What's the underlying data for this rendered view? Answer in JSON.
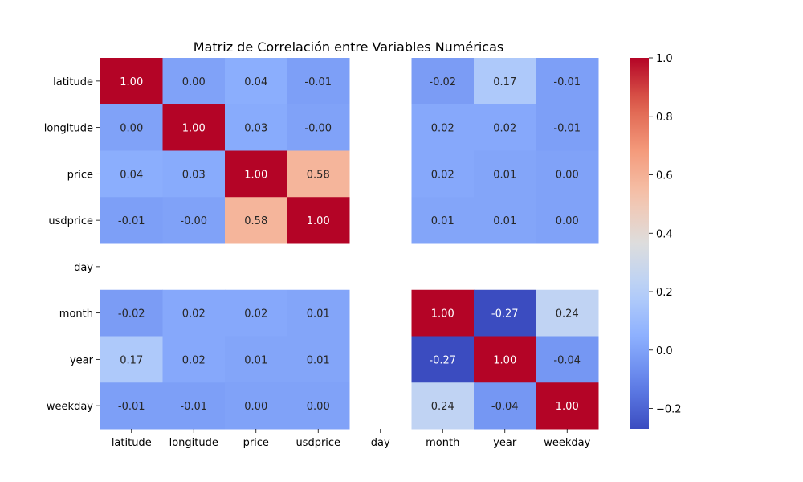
{
  "chart_data": {
    "type": "heatmap",
    "title": "Matriz de Correlación entre Variables Numéricas",
    "row_labels": [
      "latitude",
      "longitude",
      "price",
      "usdprice",
      "day",
      "month",
      "year",
      "weekday"
    ],
    "col_labels": [
      "latitude",
      "longitude",
      "price",
      "usdprice",
      "day",
      "month",
      "year",
      "weekday"
    ],
    "values": [
      [
        1.0,
        0.0,
        0.04,
        -0.01,
        null,
        -0.02,
        0.17,
        -0.01
      ],
      [
        0.0,
        1.0,
        0.03,
        -0.0,
        null,
        0.02,
        0.02,
        -0.01
      ],
      [
        0.04,
        0.03,
        1.0,
        0.58,
        null,
        0.02,
        0.01,
        0.0
      ],
      [
        -0.01,
        -0.0,
        0.58,
        1.0,
        null,
        0.01,
        0.01,
        0.0
      ],
      [
        null,
        null,
        null,
        null,
        null,
        null,
        null,
        null
      ],
      [
        -0.02,
        0.02,
        0.02,
        0.01,
        null,
        1.0,
        -0.27,
        0.24
      ],
      [
        0.17,
        0.02,
        0.01,
        0.01,
        null,
        -0.27,
        1.0,
        -0.04
      ],
      [
        -0.01,
        -0.01,
        0.0,
        0.0,
        null,
        0.24,
        -0.04,
        1.0
      ]
    ],
    "colormap": "coolwarm",
    "vmin": -0.27,
    "vmax": 1.0,
    "colorbar_ticks": [
      -0.2,
      0.0,
      0.2,
      0.4,
      0.6,
      0.8,
      1.0
    ],
    "colorbar_tick_labels": [
      "−0.2",
      "0.0",
      "0.2",
      "0.4",
      "0.6",
      "0.8",
      "1.0"
    ],
    "annotation_format": "0.00"
  }
}
